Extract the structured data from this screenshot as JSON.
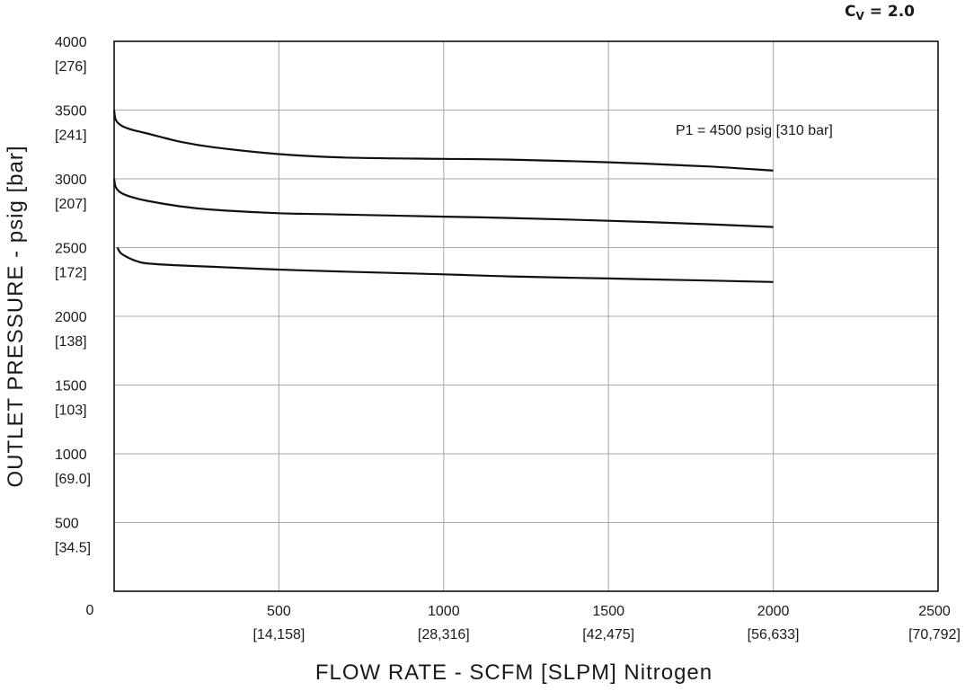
{
  "cv_label": {
    "main": "C",
    "sub": "V",
    "rest": " = 2.0"
  },
  "chart_data": {
    "type": "line",
    "xlabel": "FLOW RATE - SCFM [SLPM] Nitrogen",
    "ylabel": "OUTLET PRESSURE - psig [bar]",
    "xlim": [
      0,
      2500
    ],
    "ylim": [
      0,
      4000
    ],
    "grid": true,
    "x_ticks": [
      {
        "value": 0,
        "label": "0",
        "sub": ""
      },
      {
        "value": 500,
        "label": "500",
        "sub": "[14,158]"
      },
      {
        "value": 1000,
        "label": "1000",
        "sub": "[28,316]"
      },
      {
        "value": 1500,
        "label": "1500",
        "sub": "[42,475]"
      },
      {
        "value": 2000,
        "label": "2000",
        "sub": "[56,633]"
      },
      {
        "value": 2500,
        "label": "2500",
        "sub": "[70,792]"
      }
    ],
    "y_ticks": [
      {
        "value": 0,
        "label": "0",
        "sub": ""
      },
      {
        "value": 500,
        "label": "500",
        "sub": "[34.5]"
      },
      {
        "value": 1000,
        "label": "1000",
        "sub": "[69.0]"
      },
      {
        "value": 1500,
        "label": "1500",
        "sub": "[103]"
      },
      {
        "value": 2000,
        "label": "2000",
        "sub": "[138]"
      },
      {
        "value": 2500,
        "label": "2500",
        "sub": "[172]"
      },
      {
        "value": 3000,
        "label": "3000",
        "sub": "[207]"
      },
      {
        "value": 3500,
        "label": "3500",
        "sub": "[241]"
      },
      {
        "value": 4000,
        "label": "4000",
        "sub": "[276]"
      }
    ],
    "annotation": "P1 = 4500 psig [310 bar]",
    "series": [
      {
        "x": [
          0,
          5,
          20,
          50,
          100,
          200,
          300,
          500,
          700,
          1000,
          1200,
          1500,
          1800,
          2000
        ],
        "y": [
          3500,
          3430,
          3390,
          3360,
          3330,
          3270,
          3230,
          3180,
          3155,
          3145,
          3140,
          3120,
          3090,
          3060
        ]
      },
      {
        "x": [
          0,
          5,
          20,
          50,
          100,
          200,
          300,
          500,
          700,
          1000,
          1200,
          1500,
          1800,
          2000
        ],
        "y": [
          3000,
          2940,
          2900,
          2870,
          2840,
          2800,
          2775,
          2750,
          2740,
          2725,
          2715,
          2695,
          2670,
          2650
        ]
      },
      {
        "x": [
          10,
          20,
          40,
          70,
          100,
          200,
          300,
          500,
          700,
          1000,
          1200,
          1500,
          1800,
          2000
        ],
        "y": [
          2500,
          2460,
          2430,
          2400,
          2385,
          2370,
          2360,
          2340,
          2325,
          2305,
          2290,
          2275,
          2260,
          2250
        ]
      }
    ]
  }
}
